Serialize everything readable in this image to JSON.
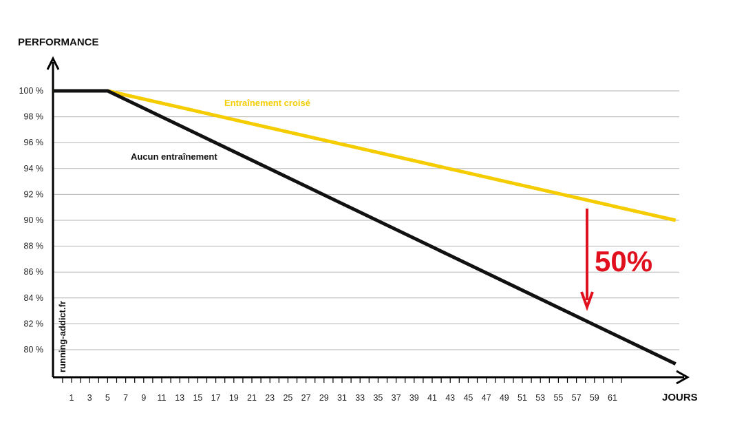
{
  "chart_data": {
    "type": "line",
    "ylabel": "PERFORMANCE",
    "xlabel": "JOURS",
    "ylim": [
      80,
      100
    ],
    "y_ticks": [
      "100 %",
      "98 %",
      "96 %",
      "94 %",
      "92 %",
      "90 %",
      "88 %",
      "86 %",
      "84 %",
      "82 %",
      "80 %"
    ],
    "x_ticks": [
      "1",
      "3",
      "5",
      "7",
      "9",
      "11",
      "13",
      "15",
      "17",
      "19",
      "21",
      "23",
      "25",
      "27",
      "29",
      "31",
      "33",
      "35",
      "37",
      "39",
      "41",
      "43",
      "45",
      "47",
      "49",
      "51",
      "53",
      "55",
      "57",
      "59",
      "61"
    ],
    "grid": true,
    "series": [
      {
        "name": "Entraînement croisé",
        "color": "#f5cc00",
        "points": [
          [
            -1,
            100
          ],
          [
            5,
            100
          ],
          [
            68,
            90
          ]
        ]
      },
      {
        "name": "Aucun entraînement",
        "color": "#111111",
        "points": [
          [
            -1,
            100
          ],
          [
            5,
            100
          ],
          [
            68,
            78.9
          ]
        ]
      }
    ],
    "annotations": [
      {
        "text": "50%",
        "color": "#e0101e",
        "type": "arrow-down"
      }
    ],
    "watermark": "running-addict.fr"
  }
}
